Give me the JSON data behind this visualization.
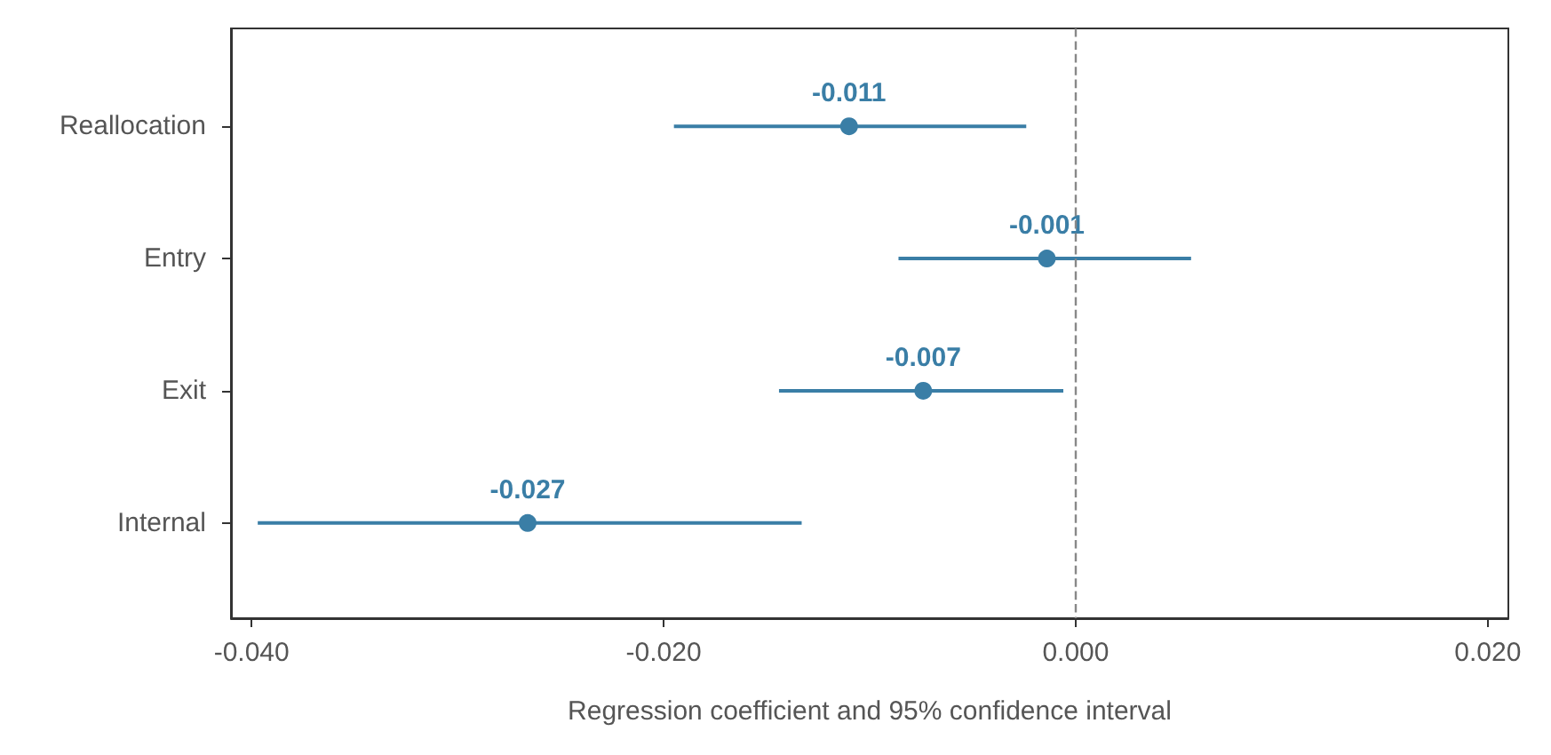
{
  "chart_data": {
    "type": "scatter",
    "orientation": "horizontal",
    "xlabel": "Regression coefficient and 95% confidence interval",
    "categories": [
      "Reallocation",
      "Entry",
      "Exit",
      "Internal"
    ],
    "values": [
      -0.011,
      -0.0014,
      -0.0074,
      -0.0266
    ],
    "errors": [
      [
        -0.0195,
        -0.0024
      ],
      [
        -0.0086,
        0.0056
      ],
      [
        -0.0144,
        -0.0006
      ],
      [
        -0.0397,
        -0.0133
      ]
    ],
    "value_labels": [
      "-0.011",
      "-0.001",
      "-0.007",
      "-0.027"
    ],
    "color": "#3a7ea6",
    "marker": "circle",
    "grid": false,
    "xlim": [
      -0.041,
      0.021
    ],
    "xticks": [
      {
        "value": -0.04,
        "label": "-0.040"
      },
      {
        "value": -0.02,
        "label": "-0.020"
      },
      {
        "value": 0,
        "label": "0.000"
      },
      {
        "value": 0.02,
        "label": "0.020"
      }
    ],
    "ref_lines": [
      {
        "axis": "x",
        "value": 0,
        "color": "#888888",
        "line_style": "dashed"
      }
    ]
  }
}
